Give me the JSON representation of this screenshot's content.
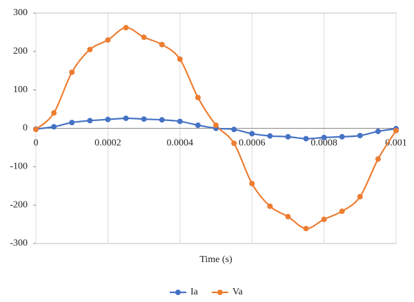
{
  "chart_data": {
    "type": "line",
    "x_label": "Time (s)",
    "x": [
      0,
      5e-05,
      0.0001,
      0.00015,
      0.0002,
      0.00025,
      0.0003,
      0.00035,
      0.0004,
      0.00045,
      0.0005,
      0.00055,
      0.0006,
      0.00065,
      0.0007,
      0.00075,
      0.0008,
      0.00085,
      0.0009,
      0.00095,
      0.001
    ],
    "series": [
      {
        "name": "Ia",
        "color": "#4472c4",
        "values": [
          -2,
          4,
          15,
          20,
          23,
          26,
          24,
          22,
          18,
          8,
          0,
          -3,
          -14,
          -20,
          -22,
          -27,
          -24,
          -22,
          -19,
          -8,
          -1
        ]
      },
      {
        "name": "Va",
        "color": "#ed7d31",
        "values": [
          -3,
          40,
          146,
          205,
          230,
          262,
          237,
          218,
          180,
          80,
          8,
          -39,
          -144,
          -203,
          -230,
          -261,
          -237,
          -216,
          -178,
          -80,
          -6
        ]
      }
    ],
    "xlim": [
      0,
      0.001
    ],
    "xticks": [
      0,
      0.0002,
      0.0004,
      0.0006,
      0.0008,
      0.001
    ],
    "ylim": [
      -300,
      300
    ],
    "yticks": [
      -300,
      -200,
      -100,
      0,
      100,
      200,
      300
    ],
    "grid": true,
    "legend": "bottom"
  }
}
